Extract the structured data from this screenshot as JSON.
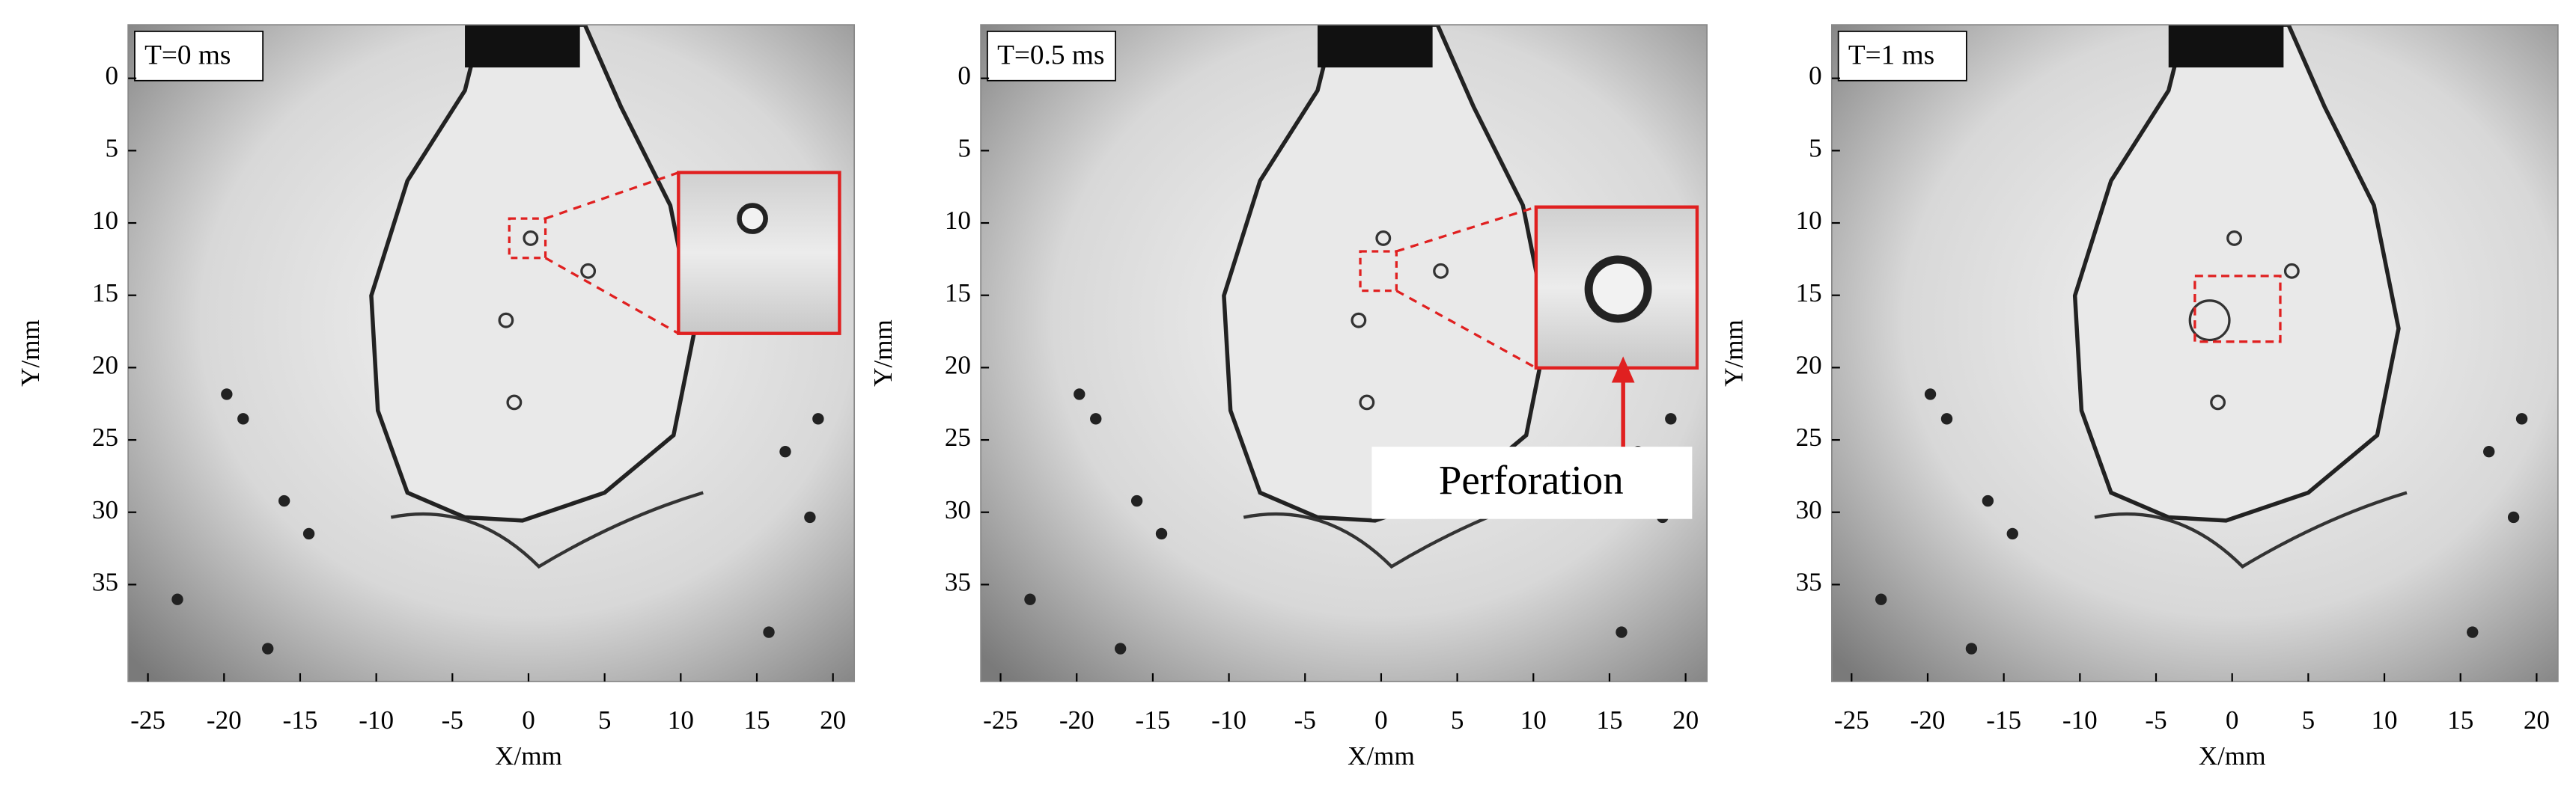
{
  "panels": [
    {
      "time_label": "T=0 ms",
      "x_label": "X/mm",
      "y_label": "Y/mm",
      "xlim": [
        -26.3,
        21.4
      ],
      "ylim": [
        -3.7,
        41.7
      ],
      "y_inverted": true,
      "xticks": [
        -25,
        -20,
        -15,
        -10,
        -5,
        0,
        5,
        10,
        15,
        20
      ],
      "yticks": [
        0,
        5,
        10,
        15,
        20,
        25,
        30,
        35
      ]
    },
    {
      "time_label": "T=0.5 ms",
      "x_label": "X/mm",
      "y_label": "Y/mm",
      "xlim": [
        -26.3,
        21.4
      ],
      "ylim": [
        -3.7,
        41.7
      ],
      "y_inverted": true,
      "xticks": [
        -25,
        -20,
        -15,
        -10,
        -5,
        0,
        5,
        10,
        15,
        20
      ],
      "yticks": [
        0,
        5,
        10,
        15,
        20,
        25,
        30,
        35
      ]
    },
    {
      "time_label": "T=1 ms",
      "x_label": "X/mm",
      "y_label": "Y/mm",
      "xlim": [
        -26.3,
        21.4
      ],
      "ylim": [
        -3.7,
        41.7
      ],
      "y_inverted": true,
      "xticks": [
        -25,
        -20,
        -15,
        -10,
        -5,
        0,
        5,
        10,
        15,
        20
      ],
      "yticks": [
        0,
        5,
        10,
        15,
        20,
        25,
        30,
        35
      ]
    }
  ],
  "annotation": "Perforation"
}
